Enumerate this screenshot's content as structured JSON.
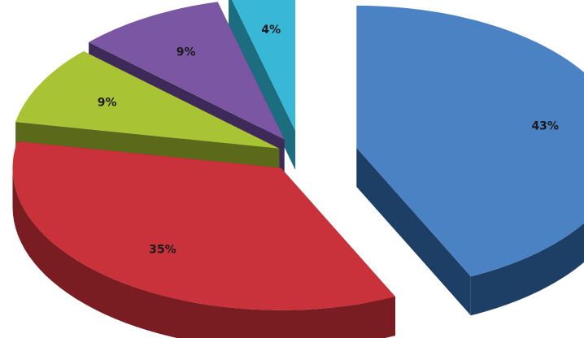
{
  "chart_data": {
    "type": "pie",
    "style": "3d-exploded",
    "categories": [
      "",
      "",
      "",
      "",
      ""
    ],
    "values": [
      43,
      35,
      9,
      9,
      4
    ],
    "labels": [
      "43%",
      "35%",
      "9%",
      "9%",
      "4%"
    ],
    "colors": {
      "top": [
        "#4a82c4",
        "#c9323a",
        "#a8c434",
        "#7b57a3",
        "#38b8d6"
      ],
      "side": [
        "#1d3f66",
        "#7a1d22",
        "#5a6a1a",
        "#3e2a58",
        "#1c6d80"
      ]
    },
    "legend": "none",
    "title": ""
  }
}
